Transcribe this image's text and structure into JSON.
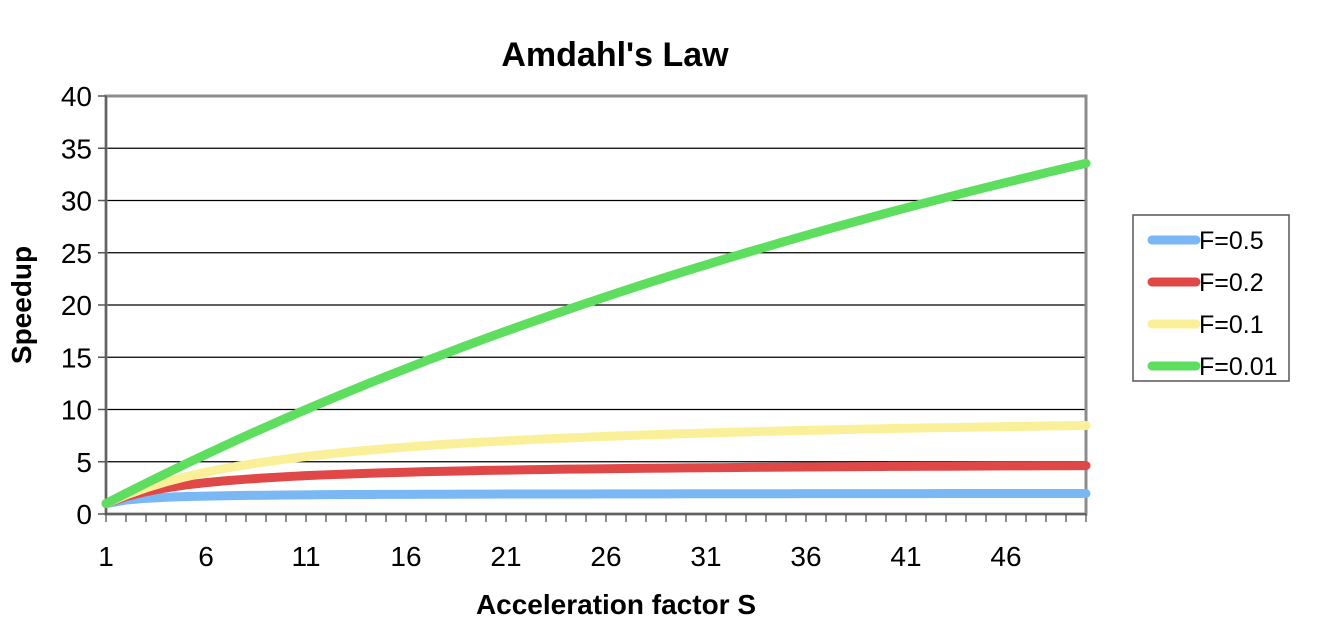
{
  "chart_data": {
    "type": "line",
    "title": "Amdahl's Law",
    "xlabel": "Acceleration factor S",
    "ylabel": "Speedup",
    "x_range": [
      1,
      50
    ],
    "x_ticks": [
      1,
      6,
      11,
      16,
      21,
      26,
      31,
      36,
      41,
      46
    ],
    "ylim": [
      0,
      40
    ],
    "y_ticks": [
      0,
      5,
      10,
      15,
      20,
      25,
      30,
      35,
      40
    ],
    "grid": "horizontal",
    "legend": "right",
    "series": [
      {
        "name": "F=0.5",
        "color": "#7ab8f5",
        "values": [
          1.0,
          1.33,
          1.5,
          1.6,
          1.67,
          1.71,
          1.75,
          1.78,
          1.8,
          1.82,
          1.83,
          1.85,
          1.86,
          1.87,
          1.88,
          1.88,
          1.89,
          1.89,
          1.9,
          1.9,
          1.91,
          1.91,
          1.92,
          1.92,
          1.92,
          1.93,
          1.93,
          1.93,
          1.93,
          1.94,
          1.94,
          1.94,
          1.94,
          1.94,
          1.94,
          1.95,
          1.95,
          1.95,
          1.95,
          1.95,
          1.95,
          1.95,
          1.96,
          1.96,
          1.96,
          1.96,
          1.96,
          1.96,
          1.96,
          1.96
        ]
      },
      {
        "name": "F=0.2",
        "color": "#e04848",
        "values": [
          1.0,
          1.67,
          2.14,
          2.5,
          2.78,
          3.0,
          3.18,
          3.33,
          3.46,
          3.57,
          3.67,
          3.75,
          3.82,
          3.89,
          3.95,
          4.0,
          4.05,
          4.09,
          4.13,
          4.17,
          4.2,
          4.23,
          4.26,
          4.29,
          4.31,
          4.33,
          4.35,
          4.38,
          4.39,
          4.41,
          4.43,
          4.44,
          4.46,
          4.47,
          4.49,
          4.5,
          4.51,
          4.52,
          4.53,
          4.55,
          4.56,
          4.57,
          4.57,
          4.58,
          4.59,
          4.6,
          4.61,
          4.62,
          4.62,
          4.63
        ]
      },
      {
        "name": "F=0.1",
        "color": "#fbf09a",
        "values": [
          1.0,
          1.82,
          2.5,
          3.08,
          3.57,
          4.0,
          4.38,
          4.71,
          5.0,
          5.26,
          5.5,
          5.71,
          5.91,
          6.09,
          6.25,
          6.4,
          6.54,
          6.67,
          6.79,
          6.9,
          7.0,
          7.1,
          7.19,
          7.27,
          7.35,
          7.43,
          7.5,
          7.57,
          7.63,
          7.69,
          7.75,
          7.8,
          7.86,
          7.91,
          7.95,
          8.0,
          8.04,
          8.09,
          8.13,
          8.16,
          8.2,
          8.24,
          8.27,
          8.3,
          8.33,
          8.36,
          8.39,
          8.42,
          8.45,
          8.47
        ]
      },
      {
        "name": "F=0.01",
        "color": "#5ede5e",
        "values": [
          1.0,
          1.98,
          2.94,
          3.88,
          4.81,
          5.71,
          6.6,
          7.48,
          8.33,
          9.17,
          10.0,
          10.81,
          11.61,
          12.4,
          13.16,
          13.91,
          14.66,
          15.38,
          16.1,
          16.81,
          17.5,
          18.18,
          18.85,
          19.51,
          20.16,
          20.8,
          21.43,
          22.05,
          22.66,
          23.26,
          23.85,
          24.43,
          25.0,
          25.56,
          26.12,
          26.67,
          27.21,
          27.74,
          28.26,
          28.78,
          29.29,
          29.79,
          30.28,
          30.77,
          31.25,
          31.72,
          32.19,
          32.65,
          33.11,
          33.56
        ]
      }
    ]
  }
}
